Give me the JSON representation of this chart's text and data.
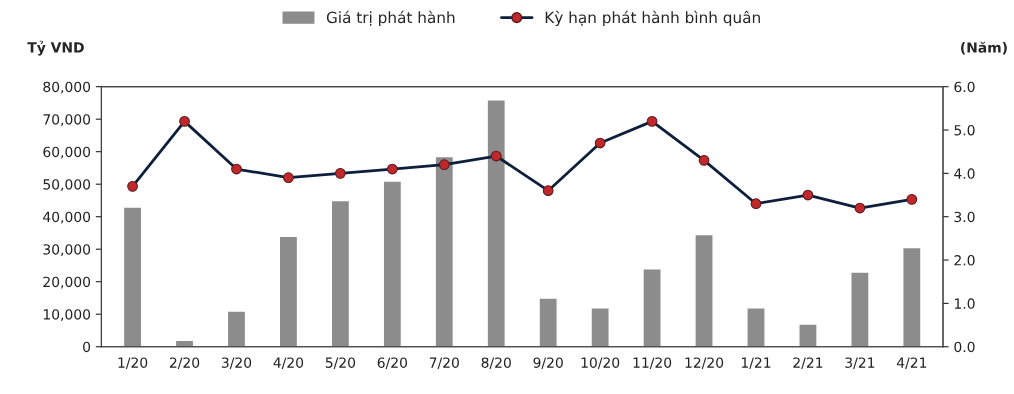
{
  "chart_data": {
    "type": "bar",
    "categories": [
      "1/20",
      "2/20",
      "3/20",
      "4/20",
      "5/20",
      "6/20",
      "7/20",
      "8/20",
      "9/20",
      "10/20",
      "11/20",
      "12/20",
      "1/21",
      "2/21",
      "3/21",
      "4/21"
    ],
    "series": [
      {
        "name": "Giá trị phát hành",
        "color": "#8c8c8c",
        "values": [
          43000,
          2000,
          11000,
          34000,
          45000,
          51000,
          58500,
          76000,
          15000,
          12000,
          24000,
          34500,
          12000,
          7000,
          23000,
          30500
        ]
      },
      {
        "name": "Kỳ hạn phát hành bình quân",
        "type": "line",
        "axis": "y2",
        "color": "#0d1f3c",
        "marker": "circle",
        "values": [
          3.7,
          5.2,
          4.1,
          3.9,
          4.0,
          4.1,
          4.2,
          4.4,
          3.6,
          4.7,
          5.2,
          4.3,
          3.3,
          3.5,
          3.2,
          3.4
        ]
      }
    ],
    "ylabel": "Tỷ VND",
    "y2label": "(Năm)",
    "ylim": [
      0,
      80000
    ],
    "yticks": [
      0,
      {
        "value": 10000,
        "label": "10,000"
      },
      {
        "value": 20000,
        "label": "20,000"
      },
      {
        "value": 30000,
        "label": "30,000"
      },
      {
        "value": 40000,
        "label": "40,000"
      },
      {
        "value": 50000,
        "label": "50,000"
      },
      {
        "value": 60000,
        "label": "60,000"
      },
      {
        "value": 70000,
        "label": "70,000"
      },
      {
        "value": 80000,
        "label": "80,000"
      }
    ],
    "y2lim": [
      0,
      6
    ],
    "y2ticks": [
      {
        "value": 0,
        "label": "0.0"
      },
      {
        "value": 1,
        "label": "1.0"
      },
      {
        "value": 2,
        "label": "2.0"
      },
      {
        "value": 3,
        "label": "3.0"
      },
      {
        "value": 4,
        "label": "4.0"
      },
      {
        "value": 5,
        "label": "5.0"
      },
      {
        "value": 6,
        "label": "6.0"
      }
    ],
    "legend": "top",
    "grid": false
  }
}
